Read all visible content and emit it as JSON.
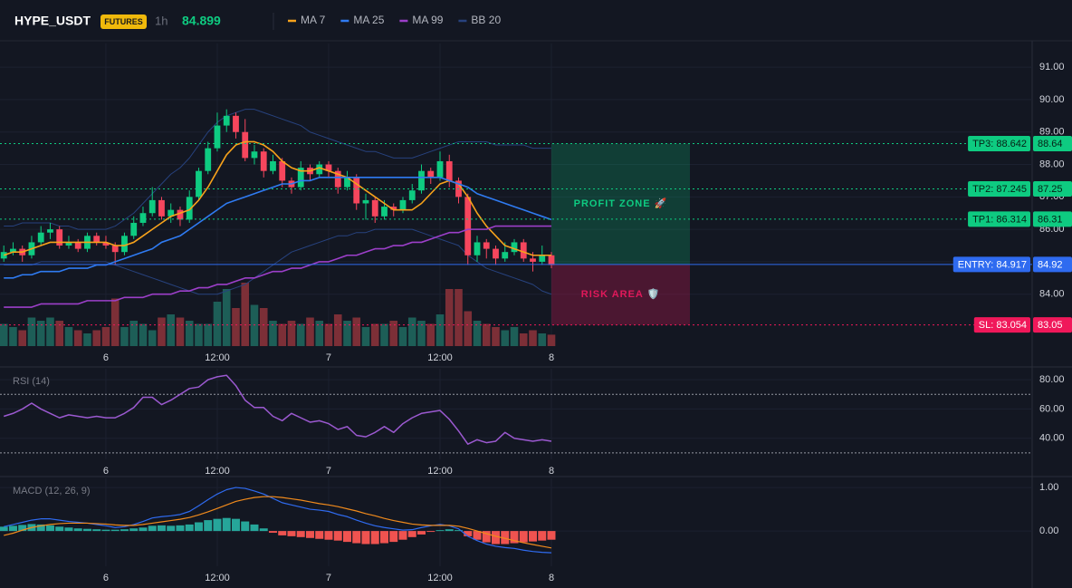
{
  "header": {
    "symbol": "HYPE_USDT",
    "badge": "FUTURES",
    "interval": "1h",
    "price": 84.899
  },
  "chart_data": [
    {
      "type": "candlestick",
      "xlim": [
        -0.41,
        110.8
      ],
      "ylim": [
        82.4,
        91.73
      ],
      "xticks": [
        {
          "value": 11,
          "label": "6"
        },
        {
          "value": 23,
          "label": "12:00"
        },
        {
          "value": 35,
          "label": "7"
        },
        {
          "value": 47,
          "label": "12:00"
        },
        {
          "value": 59,
          "label": "8"
        }
      ],
      "yticks": [
        {
          "value": 84,
          "label": "84.00"
        },
        {
          "value": 85,
          "label": "85.00"
        },
        {
          "value": 86,
          "label": "86.00"
        },
        {
          "value": 87,
          "label": "87.00"
        },
        {
          "value": 88,
          "label": "88.00"
        },
        {
          "value": 89,
          "label": "89.00"
        },
        {
          "value": 90,
          "label": "90.00"
        },
        {
          "value": 91,
          "label": "91.00"
        }
      ],
      "colors": {
        "up": "#0ecb81",
        "down": "#f6465d",
        "volume_up": "#1d5e57",
        "volume_down": "#7c2f37"
      },
      "ohlc": [
        [
          85.1,
          85.5,
          85.0,
          85.3
        ],
        [
          85.3,
          85.6,
          85.2,
          85.4
        ],
        [
          85.4,
          85.5,
          85.0,
          85.2
        ],
        [
          85.2,
          85.8,
          85.1,
          85.6
        ],
        [
          85.6,
          86.1,
          85.5,
          85.9
        ],
        [
          85.9,
          86.2,
          85.7,
          86.0
        ],
        [
          86.0,
          86.1,
          85.4,
          85.5
        ],
        [
          85.5,
          85.8,
          85.4,
          85.6
        ],
        [
          85.6,
          85.7,
          85.3,
          85.4
        ],
        [
          85.4,
          85.9,
          85.3,
          85.8
        ],
        [
          85.8,
          85.9,
          85.5,
          85.6
        ],
        [
          85.6,
          85.8,
          85.4,
          85.5
        ],
        [
          85.5,
          85.6,
          84.9,
          85.3
        ],
        [
          85.3,
          85.9,
          85.2,
          85.8
        ],
        [
          85.8,
          86.4,
          85.7,
          86.2
        ],
        [
          86.2,
          86.7,
          86.1,
          86.5
        ],
        [
          86.5,
          87.3,
          86.4,
          86.9
        ],
        [
          86.9,
          87.0,
          86.3,
          86.4
        ],
        [
          86.4,
          86.8,
          86.2,
          86.6
        ],
        [
          86.6,
          86.7,
          86.1,
          86.3
        ],
        [
          86.3,
          87.2,
          86.2,
          87.0
        ],
        [
          87.0,
          87.9,
          86.9,
          87.8
        ],
        [
          87.8,
          88.7,
          87.7,
          88.5
        ],
        [
          88.5,
          89.6,
          88.4,
          89.2
        ],
        [
          89.2,
          89.7,
          89.0,
          89.5
        ],
        [
          89.5,
          89.6,
          88.8,
          89.0
        ],
        [
          89.0,
          89.4,
          88.1,
          88.2
        ],
        [
          88.2,
          88.6,
          88.0,
          88.4
        ],
        [
          88.4,
          88.5,
          87.6,
          87.8
        ],
        [
          87.8,
          88.3,
          87.7,
          88.1
        ],
        [
          88.1,
          88.2,
          87.3,
          87.5
        ],
        [
          87.5,
          87.6,
          87.1,
          87.3
        ],
        [
          87.3,
          88.1,
          87.2,
          87.9
        ],
        [
          87.9,
          88.0,
          87.5,
          87.7
        ],
        [
          87.7,
          88.1,
          87.6,
          88.0
        ],
        [
          88.0,
          88.1,
          87.6,
          87.8
        ],
        [
          87.8,
          87.9,
          87.1,
          87.3
        ],
        [
          87.3,
          87.8,
          87.2,
          87.6
        ],
        [
          87.6,
          87.7,
          86.6,
          86.8
        ],
        [
          86.8,
          87.1,
          86.3,
          86.9
        ],
        [
          86.9,
          87.0,
          86.2,
          86.4
        ],
        [
          86.4,
          86.9,
          86.3,
          86.7
        ],
        [
          86.7,
          86.8,
          86.4,
          86.6
        ],
        [
          86.6,
          87.0,
          86.5,
          86.9
        ],
        [
          86.9,
          87.4,
          86.8,
          87.2
        ],
        [
          87.2,
          88.0,
          87.1,
          87.8
        ],
        [
          87.8,
          87.9,
          87.4,
          87.6
        ],
        [
          87.6,
          88.4,
          87.5,
          88.1
        ],
        [
          88.1,
          88.3,
          87.3,
          87.5
        ],
        [
          87.5,
          87.6,
          86.8,
          87.0
        ],
        [
          87.0,
          87.1,
          84.9,
          85.2
        ],
        [
          85.2,
          85.8,
          85.0,
          85.6
        ],
        [
          85.6,
          85.7,
          85.1,
          85.4
        ],
        [
          85.4,
          85.5,
          84.9,
          85.1
        ],
        [
          85.1,
          85.6,
          85.0,
          85.3
        ],
        [
          85.3,
          85.7,
          85.2,
          85.6
        ],
        [
          85.6,
          85.7,
          85.0,
          85.1
        ],
        [
          85.1,
          85.3,
          84.7,
          85.0
        ],
        [
          85.0,
          85.5,
          84.9,
          85.2
        ],
        [
          85.2,
          85.3,
          84.8,
          84.899
        ]
      ],
      "volume": [
        35,
        30,
        25,
        45,
        40,
        45,
        40,
        30,
        25,
        20,
        25,
        30,
        75,
        30,
        40,
        35,
        25,
        45,
        50,
        45,
        40,
        35,
        35,
        70,
        90,
        60,
        100,
        65,
        60,
        40,
        35,
        40,
        35,
        45,
        40,
        35,
        50,
        40,
        45,
        30,
        35,
        35,
        40,
        30,
        45,
        40,
        35,
        50,
        90,
        90,
        55,
        40,
        35,
        30,
        25,
        30,
        20,
        25,
        20,
        18
      ],
      "vlim": [
        0,
        100
      ],
      "series": [
        {
          "name": "MA 7",
          "color": "#f7a21b",
          "values": [
            85.2,
            85.3,
            85.3,
            85.4,
            85.5,
            85.6,
            85.6,
            85.6,
            85.6,
            85.6,
            85.6,
            85.6,
            85.5,
            85.5,
            85.6,
            85.8,
            86.0,
            86.2,
            86.4,
            86.5,
            86.6,
            86.9,
            87.3,
            87.8,
            88.3,
            88.6,
            88.7,
            88.7,
            88.6,
            88.4,
            88.1,
            87.9,
            87.8,
            87.8,
            87.9,
            87.8,
            87.7,
            87.6,
            87.4,
            87.2,
            87.0,
            86.8,
            86.6,
            86.6,
            86.6,
            86.8,
            87.1,
            87.4,
            87.5,
            87.4,
            87.0,
            86.5,
            86.1,
            85.8,
            85.5,
            85.4,
            85.3,
            85.2,
            85.2,
            85.2
          ]
        },
        {
          "name": "MA 25",
          "color": "#2f7bf2",
          "values": [
            84.5,
            84.5,
            84.6,
            84.6,
            84.7,
            84.7,
            84.7,
            84.8,
            84.8,
            84.8,
            84.9,
            84.9,
            85.0,
            85.1,
            85.2,
            85.3,
            85.4,
            85.6,
            85.7,
            85.8,
            86.0,
            86.2,
            86.4,
            86.6,
            86.8,
            86.9,
            87.0,
            87.1,
            87.2,
            87.3,
            87.4,
            87.4,
            87.5,
            87.5,
            87.6,
            87.6,
            87.6,
            87.6,
            87.6,
            87.6,
            87.6,
            87.6,
            87.6,
            87.6,
            87.6,
            87.6,
            87.6,
            87.6,
            87.5,
            87.4,
            87.3,
            87.1,
            87.0,
            86.9,
            86.8,
            86.7,
            86.6,
            86.5,
            86.4,
            86.3
          ]
        },
        {
          "name": "MA 99",
          "color": "#9c3fc9",
          "values": [
            83.6,
            83.6,
            83.6,
            83.6,
            83.7,
            83.7,
            83.7,
            83.7,
            83.7,
            83.8,
            83.8,
            83.8,
            83.8,
            83.9,
            83.9,
            83.9,
            84.0,
            84.0,
            84.0,
            84.1,
            84.1,
            84.2,
            84.2,
            84.3,
            84.3,
            84.4,
            84.5,
            84.5,
            84.6,
            84.7,
            84.7,
            84.8,
            84.8,
            84.9,
            85.0,
            85.0,
            85.1,
            85.2,
            85.2,
            85.3,
            85.4,
            85.4,
            85.5,
            85.5,
            85.6,
            85.6,
            85.7,
            85.8,
            85.9,
            85.9,
            86.0,
            86.0,
            86.0,
            86.1,
            86.1,
            86.1,
            86.1,
            86.1,
            86.1,
            86.1
          ]
        },
        {
          "name": "BB 20",
          "color": "#27427e",
          "values": [
            86.1,
            86.1,
            86.2,
            86.2,
            86.2,
            86.2,
            86.1,
            86.1,
            86.0,
            86.0,
            86.0,
            86.0,
            86.1,
            86.3,
            86.5,
            86.8,
            87.1,
            87.4,
            87.7,
            87.9,
            88.2,
            88.6,
            89.0,
            89.3,
            89.5,
            89.6,
            89.7,
            89.7,
            89.6,
            89.5,
            89.4,
            89.3,
            89.2,
            89.0,
            88.9,
            88.8,
            88.7,
            88.6,
            88.5,
            88.4,
            88.4,
            88.3,
            88.2,
            88.2,
            88.2,
            88.3,
            88.4,
            88.5,
            88.6,
            88.7,
            88.7,
            88.7,
            88.7,
            88.6,
            88.6,
            88.6,
            88.6,
            88.5,
            88.5,
            88.5
          ],
          "lower": [
            84.9,
            84.9,
            84.9,
            84.9,
            85.0,
            85.0,
            85.0,
            85.0,
            85.0,
            85.0,
            85.0,
            85.0,
            84.9,
            84.8,
            84.7,
            84.6,
            84.5,
            84.4,
            84.3,
            84.2,
            84.1,
            84.0,
            84.0,
            84.0,
            84.1,
            84.2,
            84.3,
            84.5,
            84.7,
            84.9,
            85.1,
            85.3,
            85.4,
            85.5,
            85.6,
            85.7,
            85.8,
            85.8,
            85.9,
            85.9,
            86.0,
            86.0,
            86.0,
            86.0,
            86.0,
            85.9,
            85.8,
            85.7,
            85.6,
            85.5,
            85.2,
            85.0,
            84.8,
            84.7,
            84.6,
            84.5,
            84.4,
            84.3,
            84.1,
            84.0
          ]
        }
      ],
      "levels": {
        "labels": [
          "TP3: 88.642",
          "TP2: 87.245",
          "TP1: 86.314",
          "ENTRY: 84.917",
          "SL: 83.054"
        ],
        "values": [
          88.642,
          87.245,
          86.314,
          84.917,
          83.054
        ],
        "value_labels": [
          "88.64",
          "87.25",
          "86.31",
          "84.92",
          "83.05"
        ],
        "colors": [
          "#0ecb81",
          "#0ecb81",
          "#0ecb81",
          "#2f6bf0",
          "#f0185a"
        ],
        "styles": [
          "dotted",
          "dotted",
          "dotted",
          "solid",
          "dotted"
        ]
      },
      "zones": [
        {
          "label": "PROFIT ZONE 🚀",
          "color": "#0ecb81"
        },
        {
          "label": "RISK AREA 🛡️",
          "color": "#e0185a"
        }
      ]
    },
    {
      "type": "line",
      "title": "RSI (14)",
      "color": "#9b59d0",
      "xlim": [
        -0.41,
        110.8
      ],
      "ylim": [
        25.6,
        87.5
      ],
      "xticks": [
        {
          "value": 11,
          "label": "6"
        },
        {
          "value": 23,
          "label": "12:00"
        },
        {
          "value": 35,
          "label": "7"
        },
        {
          "value": 47,
          "label": "12:00"
        },
        {
          "value": 59,
          "label": "8"
        }
      ],
      "yticks": [
        {
          "value": 40,
          "label": "40.00"
        },
        {
          "value": 60,
          "label": "60.00"
        },
        {
          "value": 80,
          "label": "80.00"
        }
      ],
      "bands": [
        70,
        30
      ],
      "values": [
        55,
        57,
        60,
        64,
        60,
        57,
        54,
        56,
        55,
        54,
        55,
        54,
        54,
        57,
        61,
        68,
        68,
        63,
        66,
        70,
        74,
        75,
        80,
        82,
        83,
        76,
        66,
        61,
        61,
        55,
        52,
        57,
        54,
        51,
        52,
        50,
        46,
        48,
        42,
        41,
        44,
        48,
        44,
        50,
        54,
        57,
        58,
        59,
        53,
        45,
        36,
        39,
        37,
        38,
        44,
        40,
        39,
        38,
        39,
        38
      ]
    },
    {
      "type": "macd",
      "title": "MACD (12, 26, 9)",
      "xlim": [
        -0.41,
        110.8
      ],
      "ylim": [
        -0.81,
        1.21
      ],
      "xticks": [
        {
          "value": 11,
          "label": "6"
        },
        {
          "value": 23,
          "label": "12:00"
        },
        {
          "value": 35,
          "label": "7"
        },
        {
          "value": 47,
          "label": "12:00"
        },
        {
          "value": 59,
          "label": "8"
        }
      ],
      "yticks": [
        {
          "value": 0,
          "label": "0.00"
        },
        {
          "value": 1,
          "label": "1.00"
        }
      ],
      "histogram": {
        "colors": [
          "#26a69a",
          "#ef5350"
        ],
        "values": [
          0.1,
          0.12,
          0.14,
          0.16,
          0.15,
          0.13,
          0.1,
          0.08,
          0.06,
          0.05,
          0.04,
          0.03,
          0.03,
          0.04,
          0.06,
          0.08,
          0.12,
          0.13,
          0.12,
          0.13,
          0.15,
          0.2,
          0.25,
          0.28,
          0.3,
          0.28,
          0.22,
          0.15,
          0.06,
          -0.04,
          -0.1,
          -0.12,
          -0.14,
          -0.16,
          -0.18,
          -0.2,
          -0.22,
          -0.25,
          -0.28,
          -0.3,
          -0.3,
          -0.28,
          -0.25,
          -0.2,
          -0.14,
          -0.08,
          -0.02,
          0.02,
          0.04,
          0.02,
          -0.12,
          -0.2,
          -0.26,
          -0.3,
          -0.3,
          -0.28,
          -0.26,
          -0.24,
          -0.22,
          -0.2
        ]
      },
      "series": [
        {
          "color": "#2f6bf0",
          "values": [
            0.1,
            0.15,
            0.2,
            0.25,
            0.28,
            0.28,
            0.25,
            0.22,
            0.2,
            0.18,
            0.15,
            0.12,
            0.08,
            0.1,
            0.15,
            0.22,
            0.3,
            0.33,
            0.35,
            0.38,
            0.45,
            0.58,
            0.72,
            0.85,
            0.95,
            1.0,
            0.98,
            0.92,
            0.85,
            0.75,
            0.65,
            0.6,
            0.55,
            0.5,
            0.48,
            0.45,
            0.38,
            0.33,
            0.25,
            0.18,
            0.12,
            0.08,
            0.05,
            0.02,
            0.03,
            0.08,
            0.12,
            0.15,
            0.12,
            0.05,
            -0.12,
            -0.22,
            -0.3,
            -0.35,
            -0.38,
            -0.4,
            -0.44,
            -0.47,
            -0.49,
            -0.5
          ]
        },
        {
          "color": "#f08a1c",
          "values": [
            -0.1,
            -0.05,
            0.02,
            0.08,
            0.12,
            0.15,
            0.17,
            0.18,
            0.18,
            0.18,
            0.17,
            0.16,
            0.14,
            0.13,
            0.13,
            0.15,
            0.18,
            0.21,
            0.24,
            0.27,
            0.31,
            0.37,
            0.44,
            0.52,
            0.6,
            0.68,
            0.73,
            0.77,
            0.79,
            0.79,
            0.77,
            0.74,
            0.71,
            0.67,
            0.63,
            0.6,
            0.56,
            0.51,
            0.46,
            0.4,
            0.35,
            0.29,
            0.24,
            0.2,
            0.16,
            0.14,
            0.13,
            0.13,
            0.13,
            0.11,
            0.06,
            0.0,
            -0.06,
            -0.12,
            -0.17,
            -0.22,
            -0.27,
            -0.31,
            -0.35,
            -0.39
          ]
        }
      ]
    }
  ]
}
